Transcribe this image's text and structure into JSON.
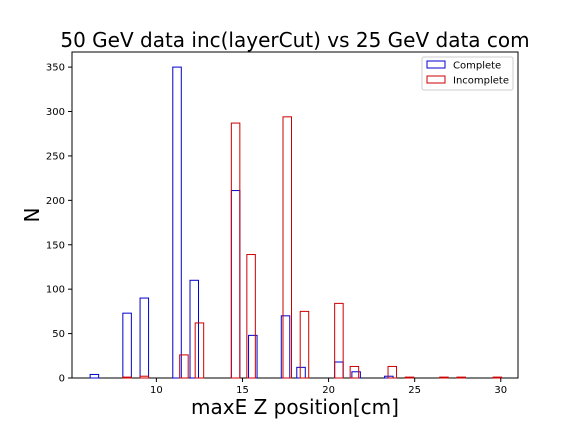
{
  "chart_data": {
    "type": "bar",
    "title": "50 GeV data inc(layerCut) vs 25 GeV data com",
    "xlabel": "maxE Z position[cm]",
    "ylabel": "N",
    "xlim": [
      5.1,
      31.0
    ],
    "ylim": [
      0,
      367
    ],
    "xticks": [
      10,
      15,
      20,
      25,
      30
    ],
    "yticks": [
      0,
      50,
      100,
      150,
      200,
      250,
      300,
      350
    ],
    "grid": false,
    "legend_position": "upper right",
    "bar_style": "unfilled step outlines",
    "series": [
      {
        "name": "Complete",
        "color": "#0000cc",
        "bars": [
          {
            "x": 6.4,
            "y": 4
          },
          {
            "x": 8.3,
            "y": 73
          },
          {
            "x": 9.3,
            "y": 90
          },
          {
            "x": 11.2,
            "y": 350
          },
          {
            "x": 12.2,
            "y": 110
          },
          {
            "x": 14.6,
            "y": 211
          },
          {
            "x": 15.6,
            "y": 48
          },
          {
            "x": 17.5,
            "y": 70
          },
          {
            "x": 18.4,
            "y": 12
          },
          {
            "x": 20.6,
            "y": 18
          },
          {
            "x": 21.6,
            "y": 7
          },
          {
            "x": 23.5,
            "y": 2
          }
        ]
      },
      {
        "name": "Incomplete",
        "color": "#cc0000",
        "bars": [
          {
            "x": 8.3,
            "y": 1
          },
          {
            "x": 9.3,
            "y": 2
          },
          {
            "x": 11.6,
            "y": 26
          },
          {
            "x": 12.5,
            "y": 62
          },
          {
            "x": 14.6,
            "y": 287
          },
          {
            "x": 15.5,
            "y": 139
          },
          {
            "x": 17.6,
            "y": 294
          },
          {
            "x": 18.6,
            "y": 75
          },
          {
            "x": 20.6,
            "y": 84
          },
          {
            "x": 21.5,
            "y": 13
          },
          {
            "x": 23.7,
            "y": 13
          },
          {
            "x": 24.7,
            "y": 1
          },
          {
            "x": 26.7,
            "y": 1
          },
          {
            "x": 27.7,
            "y": 1
          },
          {
            "x": 29.8,
            "y": 1
          }
        ]
      }
    ]
  }
}
